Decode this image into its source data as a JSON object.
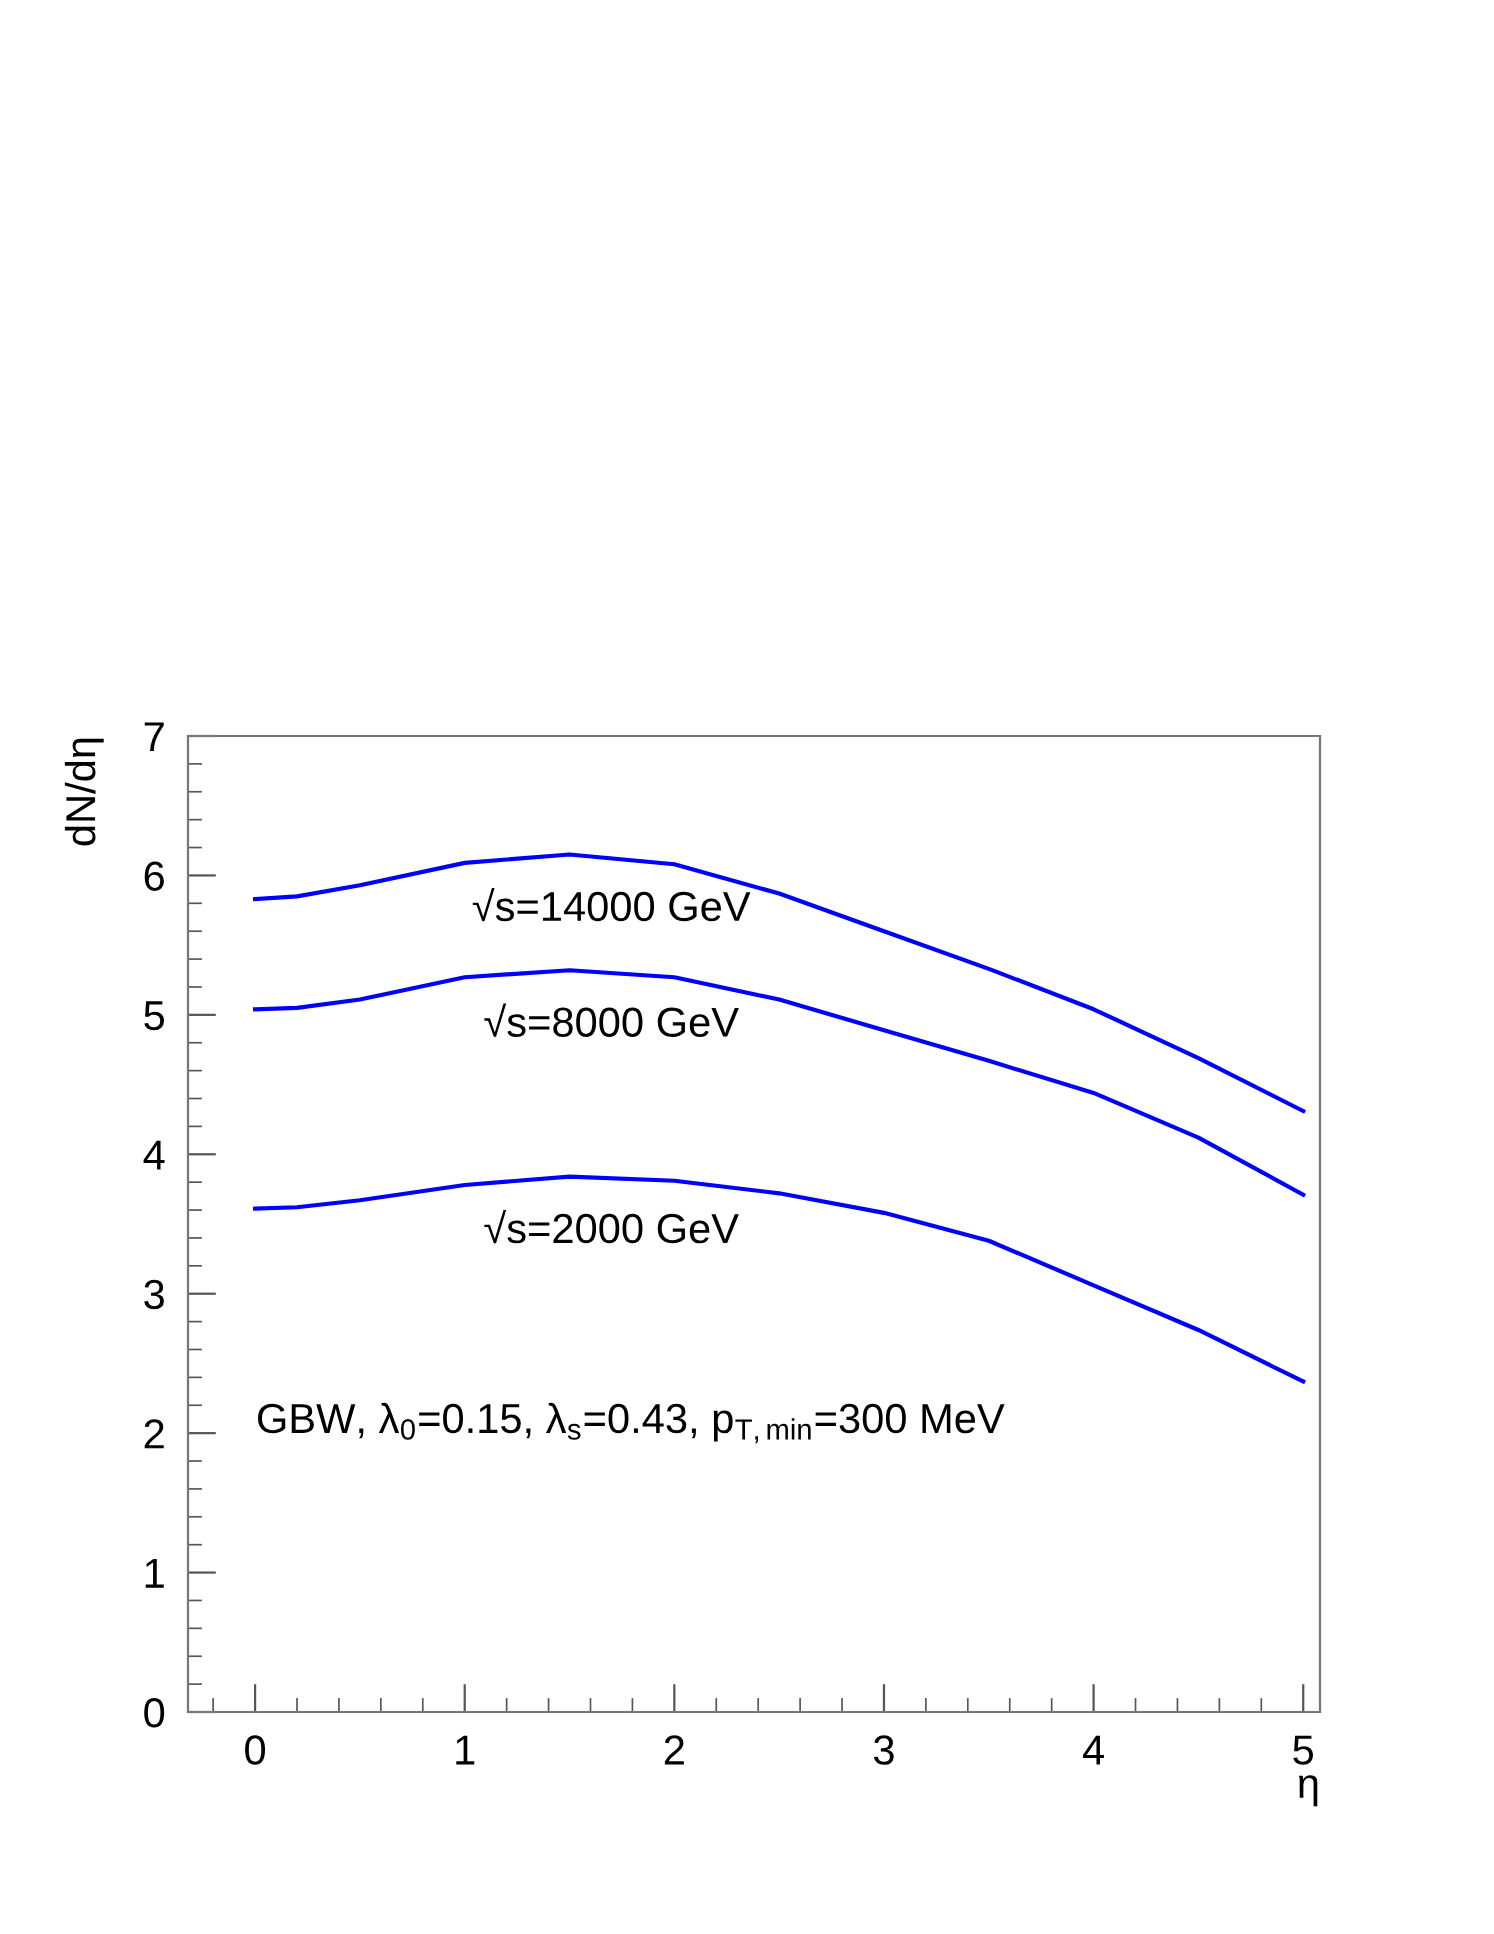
{
  "chart_data": {
    "type": "line",
    "xlabel": "η",
    "ylabel": "dN/dη",
    "x": [
      0,
      0.2,
      0.5,
      1.0,
      1.5,
      2.0,
      2.5,
      3.0,
      3.5,
      4.0,
      4.5,
      5.0
    ],
    "series": [
      {
        "name": "√s=14000 GeV",
        "color": "#0000ff",
        "values": [
          5.83,
          5.85,
          5.93,
          6.09,
          6.15,
          6.08,
          5.87,
          5.6,
          5.33,
          5.04,
          4.69,
          4.31
        ]
      },
      {
        "name": "√s=8000 GeV",
        "color": "#0000ff",
        "values": [
          5.04,
          5.05,
          5.11,
          5.27,
          5.32,
          5.27,
          5.11,
          4.89,
          4.67,
          4.44,
          4.12,
          3.71
        ]
      },
      {
        "name": "√s=2000 GeV",
        "color": "#0000ff",
        "values": [
          3.61,
          3.62,
          3.67,
          3.78,
          3.84,
          3.81,
          3.72,
          3.58,
          3.38,
          3.06,
          2.74,
          2.37
        ]
      }
    ],
    "annotations": [
      "GBW, λ$_{0}$=0.15, λ$_{s}$=0.43, p$_{T,min}$=300 MeV"
    ],
    "xlim": [
      -0.32,
      5.08
    ],
    "ylim": [
      0,
      7
    ],
    "xticks": [
      0,
      1,
      2,
      3,
      4,
      5
    ],
    "yticks": [
      0,
      1,
      2,
      3,
      4,
      5,
      6,
      7
    ],
    "grid": false,
    "legend": false,
    "marker": "none",
    "line_style": "solid"
  }
}
